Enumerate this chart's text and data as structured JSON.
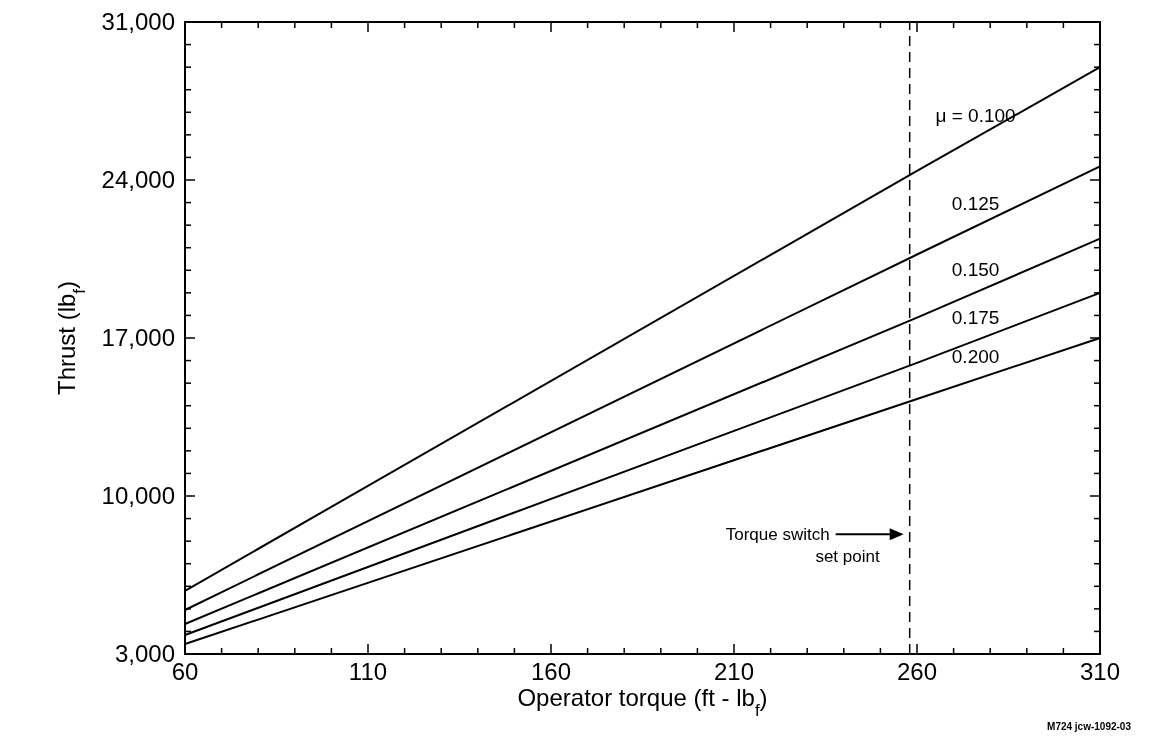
{
  "chart_data": {
    "type": "line",
    "xlabel": "Operator torque (ft - lb$_{f}$)",
    "ylabel": "Thrust (lb$_{f}$)",
    "x": [
      60,
      260,
      310
    ],
    "series": [
      {
        "name": "μ = 0.100",
        "color": "#000000",
        "values": [
          5800,
          24400,
          29000
        ]
      },
      {
        "name": "0.125",
        "color": "#000000",
        "values": [
          4950,
          20700,
          24600
        ]
      },
      {
        "name": "0.150",
        "color": "#000000",
        "values": [
          4330,
          17900,
          21400
        ]
      },
      {
        "name": "0.175",
        "color": "#000000",
        "values": [
          3840,
          15900,
          19000
        ]
      },
      {
        "name": "0.200",
        "color": "#000000",
        "values": [
          3440,
          14300,
          17000
        ]
      }
    ],
    "xlim": [
      60,
      310
    ],
    "xticks": [
      60,
      {
        "value": 70,
        "label": null
      },
      {
        "value": 80,
        "label": null
      },
      {
        "value": 90,
        "label": null
      },
      {
        "value": 100,
        "label": null
      },
      110,
      {
        "value": 120,
        "label": null
      },
      {
        "value": 130,
        "label": null
      },
      {
        "value": 140,
        "label": null
      },
      {
        "value": 150,
        "label": null
      },
      160,
      {
        "value": 170,
        "label": null
      },
      {
        "value": 180,
        "label": null
      },
      {
        "value": 190,
        "label": null
      },
      {
        "value": 200,
        "label": null
      },
      210,
      {
        "value": 220,
        "label": null
      },
      {
        "value": 230,
        "label": null
      },
      {
        "value": 240,
        "label": null
      },
      {
        "value": 250,
        "label": null
      },
      260,
      {
        "value": 270,
        "label": null
      },
      {
        "value": 280,
        "label": null
      },
      {
        "value": 290,
        "label": null
      },
      {
        "value": 300,
        "label": null
      },
      310
    ],
    "ylim": [
      3000,
      31000
    ],
    "yticks": [
      {
        "value": 3000,
        "label": "3,000"
      },
      {
        "value": 4000,
        "label": null
      },
      {
        "value": 5000,
        "label": null
      },
      {
        "value": 6000,
        "label": null
      },
      {
        "value": 7000,
        "label": null
      },
      {
        "value": 8000,
        "label": null
      },
      {
        "value": 9000,
        "label": null
      },
      {
        "value": 10000,
        "label": "10,000"
      },
      {
        "value": 11000,
        "label": null
      },
      {
        "value": 12000,
        "label": null
      },
      {
        "value": 13000,
        "label": null
      },
      {
        "value": 14000,
        "label": null
      },
      {
        "value": 15000,
        "label": null
      },
      {
        "value": 16000,
        "label": null
      },
      {
        "value": 17000,
        "label": "17,000"
      },
      {
        "value": 18000,
        "label": null
      },
      {
        "value": 19000,
        "label": null
      },
      {
        "value": 20000,
        "label": null
      },
      {
        "value": 21000,
        "label": null
      },
      {
        "value": 22000,
        "label": null
      },
      {
        "value": 23000,
        "label": null
      },
      {
        "value": 24000,
        "label": "24,000"
      },
      {
        "value": 25000,
        "label": null
      },
      {
        "value": 26000,
        "label": null
      },
      {
        "value": 27000,
        "label": null
      },
      {
        "value": 28000,
        "label": null
      },
      {
        "value": 29000,
        "label": null
      },
      {
        "value": 30000,
        "label": null
      },
      {
        "value": 31000,
        "label": "31,000"
      }
    ],
    "ref_lines": [
      {
        "axis": "x",
        "value": 258,
        "label": "Torque switch set point",
        "line_style": "dashed"
      }
    ],
    "annotations": [
      "M724 jcw-1092-03"
    ],
    "grid": false,
    "marker": "none",
    "line_style": "solid"
  }
}
